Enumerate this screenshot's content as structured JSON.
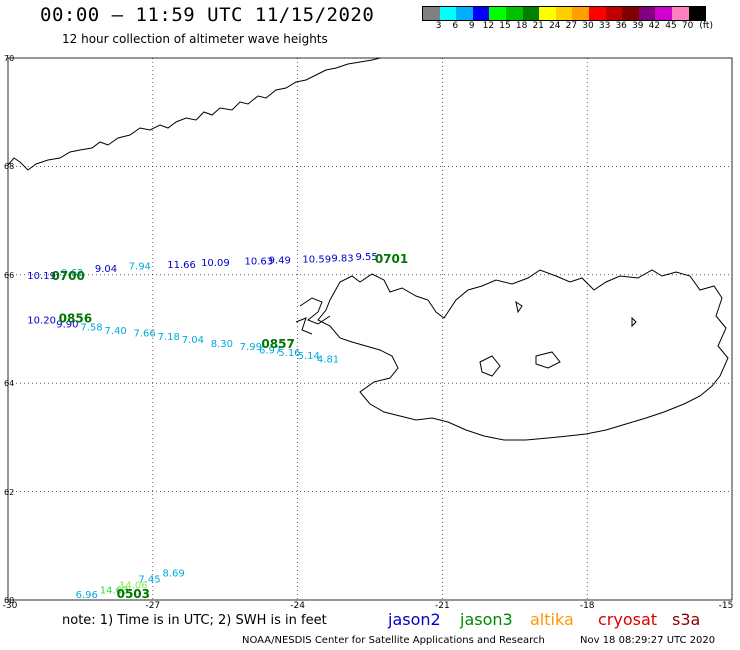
{
  "header": {
    "title": "00:00 – 11:59 UTC 11/15/2020",
    "subtitle": "12 hour collection of altimeter wave heights"
  },
  "color_scale": {
    "unit": "(ft)",
    "labels": [
      "3",
      "6",
      "9",
      "12",
      "15",
      "18",
      "21",
      "24",
      "27",
      "30",
      "33",
      "36",
      "39",
      "42",
      "45",
      "70"
    ],
    "colors": [
      "#808080",
      "#00ffff",
      "#00b0ff",
      "#0000ff",
      "#00ff00",
      "#00c000",
      "#008000",
      "#ffff00",
      "#ffd000",
      "#ffa000",
      "#ff0000",
      "#c00000",
      "#800000",
      "#800080",
      "#d000d0",
      "#ff80c0",
      "#000000"
    ]
  },
  "axes": {
    "lat_labels": [
      "70",
      "68",
      "66",
      "64",
      "62",
      "60"
    ],
    "lon_labels": [
      "-30",
      "-27",
      "-24",
      "-21",
      "-18",
      "-15"
    ]
  },
  "tracks": [
    {
      "satellite": "jason2",
      "time_label": "0700",
      "points": [
        {
          "lon": -29.6,
          "lat": 65.92,
          "swh": 10.19,
          "label": "10.19",
          "color": "#0000cc"
        },
        {
          "lon": -28.9,
          "lat": 65.98,
          "swh": 9.62,
          "label": "9.62",
          "color": "#0099dd"
        },
        {
          "lon": -28.2,
          "lat": 66.05,
          "swh": 9.04,
          "label": "9.04",
          "color": "#0000cc"
        },
        {
          "lon": -27.5,
          "lat": 66.1,
          "swh": 7.94,
          "label": "7.94",
          "color": "#00aadd"
        },
        {
          "lon": -26.7,
          "lat": 66.13,
          "swh": 11.66,
          "label": "11.66",
          "color": "#0000cc"
        },
        {
          "lon": -26.0,
          "lat": 66.16,
          "swh": 10.09,
          "label": "10.09",
          "color": "#0000cc"
        },
        {
          "lon": -25.1,
          "lat": 66.19,
          "swh": 10.63,
          "label": "10.63",
          "color": "#0000cc"
        },
        {
          "lon": -24.6,
          "lat": 66.21,
          "swh": 9.49,
          "label": "9.49",
          "color": "#0000cc"
        },
        {
          "lon": -23.9,
          "lat": 66.23,
          "swh": 10.59,
          "label": "10.59",
          "color": "#0000cc"
        },
        {
          "lon": -23.3,
          "lat": 66.25,
          "swh": 9.83,
          "label": "9.83",
          "color": "#0000cc"
        },
        {
          "lon": -22.8,
          "lat": 66.27,
          "swh": 9.55,
          "label": "9.55",
          "color": "#0000cc"
        }
      ]
    },
    {
      "satellite": "jason3",
      "time_label": "0701",
      "points": []
    },
    {
      "satellite": "jason3",
      "time_label": "0856",
      "points": [
        {
          "lon": -29.6,
          "lat": 65.1,
          "swh": 10.2,
          "label": "10.20",
          "color": "#0000cc"
        },
        {
          "lon": -29.0,
          "lat": 65.03,
          "swh": 9.9,
          "label": "9.90",
          "color": "#0000cc"
        },
        {
          "lon": -28.5,
          "lat": 64.97,
          "swh": 7.58,
          "label": "7.58",
          "color": "#00aadd"
        },
        {
          "lon": -28.0,
          "lat": 64.91,
          "swh": 7.4,
          "label": "7.40",
          "color": "#00aadd"
        },
        {
          "lon": -27.4,
          "lat": 64.86,
          "swh": 7.66,
          "label": "7.66",
          "color": "#00aadd"
        },
        {
          "lon": -26.9,
          "lat": 64.8,
          "swh": 7.18,
          "label": "7.18",
          "color": "#00aadd"
        },
        {
          "lon": -26.4,
          "lat": 64.74,
          "swh": 7.04,
          "label": "7.04",
          "color": "#00aadd"
        },
        {
          "lon": -25.8,
          "lat": 64.67,
          "swh": 8.3,
          "label": "8.30",
          "color": "#00aadd"
        },
        {
          "lon": -25.2,
          "lat": 64.61,
          "swh": 7.99,
          "label": "7.99",
          "color": "#00aadd"
        },
        {
          "lon": -24.8,
          "lat": 64.55,
          "swh": 6.97,
          "label": "6.97",
          "color": "#00aadd"
        },
        {
          "lon": -24.4,
          "lat": 64.5,
          "swh": 5.16,
          "label": "5.16",
          "color": "#00aadd"
        },
        {
          "lon": -24.0,
          "lat": 64.45,
          "swh": 5.14,
          "label": "5.14",
          "color": "#00aadd"
        },
        {
          "lon": -23.6,
          "lat": 64.38,
          "swh": 4.81,
          "label": "4.81",
          "color": "#00aadd"
        }
      ]
    },
    {
      "satellite": "jason3",
      "time_label": "0857",
      "points": []
    },
    {
      "satellite": "jason3",
      "time_label": "0503",
      "points": [
        {
          "lon": -28.6,
          "lat": 60.04,
          "swh": 6.96,
          "label": "6.96",
          "color": "#00aadd"
        },
        {
          "lon": -28.1,
          "lat": 60.12,
          "swh": 14.63,
          "label": "14.63",
          "color": "#33dd33"
        },
        {
          "lon": -27.7,
          "lat": 60.21,
          "swh": 14.06,
          "label": "14.06",
          "color": "#88ee44"
        },
        {
          "lon": -27.3,
          "lat": 60.32,
          "swh": 7.45,
          "label": "7.45",
          "color": "#00aadd"
        },
        {
          "lon": -26.8,
          "lat": 60.43,
          "swh": 8.69,
          "label": "8.69",
          "color": "#00aadd"
        }
      ]
    }
  ],
  "time_markers": [
    {
      "text": "0700",
      "lon": -29.1,
      "lat": 65.9
    },
    {
      "text": "0701",
      "lon": -22.4,
      "lat": 66.22
    },
    {
      "text": "0856",
      "lon": -28.95,
      "lat": 65.12
    },
    {
      "text": "0857",
      "lon": -24.75,
      "lat": 64.65
    },
    {
      "text": "0503",
      "lon": -27.75,
      "lat": 60.04
    }
  ],
  "footer": {
    "note": "note:  1) Time is in UTC;  2) SWH is in feet",
    "legend": [
      {
        "label": "jason2",
        "color": "#0000cc"
      },
      {
        "label": "jason3",
        "color": "#008800"
      },
      {
        "label": "altika",
        "color": "#ff9900"
      },
      {
        "label": "cryosat",
        "color": "#dd0000"
      },
      {
        "label": "s3a",
        "color": "#880000"
      }
    ],
    "credit": "NOAA/NESDIS Center for Satellite Applications and Research",
    "timestamp": "Nov 18 08:29:27 UTC 2020"
  }
}
